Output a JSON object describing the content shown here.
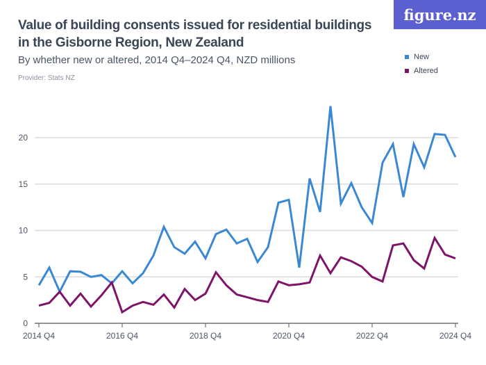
{
  "logo": "figure.nz",
  "chart_data": {
    "type": "line",
    "title": "Value of building consents issued for residential buildings in the Gisborne Region, New Zealand",
    "subtitle": "By whether new or altered, 2014 Q4–2024 Q4, NZD millions",
    "provider": "Provider: Stats NZ",
    "x_start": "2014 Q4",
    "x_end": "2024 Q4",
    "x_step": "quarter",
    "xticks": [
      "2014 Q4",
      "2016 Q4",
      "2018 Q4",
      "2020 Q4",
      "2022 Q4",
      "2024 Q4"
    ],
    "yticks": [
      0,
      5,
      10,
      15,
      20
    ],
    "ylim": [
      0,
      23.5
    ],
    "grid": true,
    "legend_position": "top-right",
    "series": [
      {
        "name": "New",
        "color": "#3a88d4",
        "values": [
          4.1,
          6.0,
          3.4,
          5.6,
          5.55,
          5.0,
          5.2,
          4.3,
          5.6,
          4.3,
          5.4,
          7.3,
          10.4,
          8.2,
          7.5,
          8.8,
          7.0,
          9.6,
          10.1,
          8.6,
          9.1,
          6.6,
          8.2,
          13.0,
          13.3,
          6.0,
          15.6,
          12.0,
          23.4,
          12.9,
          15.1,
          12.5,
          10.8,
          17.3,
          19.3,
          13.6,
          19.3,
          16.8,
          20.4,
          20.3,
          17.9
        ]
      },
      {
        "name": "Altered",
        "color": "#7e1468",
        "values": [
          1.9,
          2.2,
          3.4,
          1.9,
          3.2,
          1.8,
          3.0,
          4.4,
          1.2,
          1.9,
          2.3,
          2.0,
          3.1,
          1.7,
          3.7,
          2.5,
          3.2,
          5.5,
          4.1,
          3.1,
          2.8,
          2.5,
          2.3,
          4.5,
          4.1,
          4.2,
          4.4,
          7.3,
          5.4,
          7.1,
          6.7,
          6.1,
          5.0,
          4.5,
          8.4,
          8.6,
          6.8,
          5.9,
          9.2,
          7.4,
          7.0
        ]
      }
    ]
  }
}
